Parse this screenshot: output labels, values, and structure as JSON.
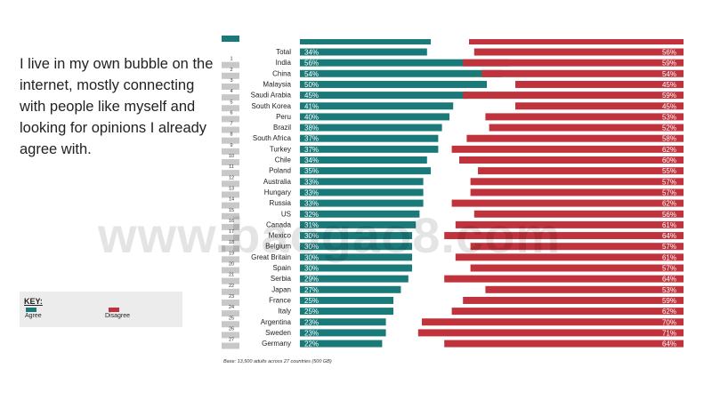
{
  "statement": "I live in my own bubble on the internet, mostly connecting with people like myself and looking for opinions I already agree with.",
  "key": {
    "title": "KEY:",
    "agree_label": "Agree",
    "disagree_label": "Disagree"
  },
  "colors": {
    "agree": "#1a7a7a",
    "disagree": "#c0323c",
    "rank": "#c8c8c8"
  },
  "base_note": "Base: 13,500 adults across 27 countries (500 GB)",
  "watermark": "www.baogao8.com",
  "chart_data": {
    "type": "bar",
    "orientation": "horizontal",
    "categories": [
      "Total",
      "India",
      "China",
      "Malaysia",
      "Saudi Arabia",
      "South Korea",
      "Peru",
      "Brazil",
      "South Africa",
      "Turkey",
      "Chile",
      "Poland",
      "Australia",
      "Hungary",
      "Russia",
      "US",
      "Canada",
      "Mexico",
      "Belgium",
      "Great Britain",
      "Spain",
      "Serbia",
      "Japan",
      "France",
      "Italy",
      "Argentina",
      "Sweden",
      "Germany"
    ],
    "ranks": [
      "",
      "1",
      "2",
      "3",
      "4",
      "5",
      "6",
      "7",
      "8",
      "9",
      "10",
      "11",
      "12",
      "13",
      "14",
      "15",
      "16",
      "17",
      "18",
      "19",
      "20",
      "21",
      "22",
      "23",
      "24",
      "25",
      "26",
      "27"
    ],
    "series": [
      {
        "name": "Agree",
        "values": [
          34,
          56,
          54,
          50,
          45,
          41,
          40,
          38,
          37,
          37,
          34,
          35,
          33,
          33,
          33,
          32,
          31,
          30,
          30,
          30,
          30,
          29,
          27,
          25,
          25,
          23,
          23,
          22
        ]
      },
      {
        "name": "Disagree",
        "values": [
          56,
          59,
          54,
          45,
          59,
          45,
          53,
          52,
          58,
          62,
          60,
          55,
          57,
          57,
          62,
          56,
          61,
          64,
          57,
          61,
          57,
          64,
          53,
          59,
          62,
          70,
          71,
          64
        ]
      }
    ],
    "agree_labels": [
      "34%",
      "56%",
      "54%",
      "50%",
      "45%",
      "41%",
      "40%",
      "38%",
      "37%",
      "37%",
      "34%",
      "35%",
      "33%",
      "33%",
      "33%",
      "32%",
      "31%",
      "30%",
      "30%",
      "30%",
      "30%",
      "29%",
      "27%",
      "25%",
      "25%",
      "23%",
      "23%",
      "22%"
    ],
    "disagree_labels": [
      "56%",
      "59%",
      "54%",
      "45%",
      "59%",
      "45%",
      "53%",
      "52%",
      "58%",
      "62%",
      "60%",
      "55%",
      "57%",
      "57%",
      "62%",
      "56%",
      "61%",
      "64%",
      "57%",
      "61%",
      "57%",
      "64%",
      "53%",
      "59%",
      "62%",
      "70%",
      "71%",
      "64%"
    ],
    "xlim": [
      0,
      100
    ],
    "header_bar": true
  }
}
